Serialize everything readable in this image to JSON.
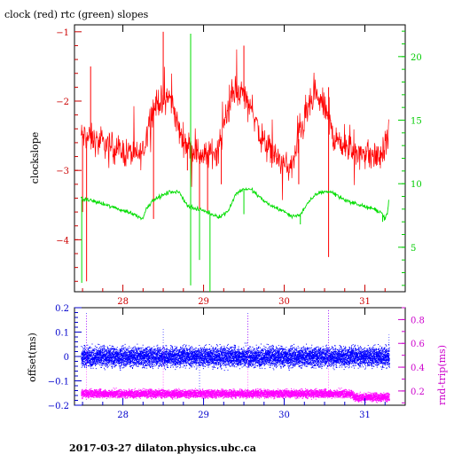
{
  "page": {
    "title": "clock (red) rtc (green) slopes",
    "footer": "2017-03-27  dilaton.physics.ubc.ca"
  },
  "colors": {
    "clock": "#ff0000",
    "rtc": "#00dd00",
    "offset": "#0000ff",
    "rndtrip": "#ff00ff",
    "axis_top": "#cc0000",
    "axis_top_right": "#00cc00",
    "axis_bottom": "#0000cc",
    "axis_bottom_right": "#cc00cc"
  },
  "chart_data": [
    {
      "type": "line",
      "title": "clock (red) rtc (green) slopes",
      "ylabel": "clockslope",
      "xlim": [
        27.4,
        31.5
      ],
      "ylim": [
        -4.75,
        -0.9
      ],
      "y2lim": [
        1.5,
        22.5
      ],
      "xticks": [
        28,
        29,
        30,
        31
      ],
      "yticks": [
        -1,
        -2,
        -3,
        -4
      ],
      "y2ticks": [
        5,
        10,
        15,
        20
      ],
      "grid": false,
      "series": [
        {
          "name": "clock",
          "axis": "left",
          "x": [
            27.48,
            27.55,
            27.62,
            27.7,
            27.78,
            27.86,
            27.94,
            28.02,
            28.1,
            28.18,
            28.26,
            28.3,
            28.35,
            28.4,
            28.45,
            28.5,
            28.55,
            28.6,
            28.65,
            28.7,
            28.78,
            28.86,
            28.94,
            29.02,
            29.1,
            29.18,
            29.25,
            29.3,
            29.35,
            29.4,
            29.45,
            29.5,
            29.55,
            29.6,
            29.65,
            29.7,
            29.78,
            29.86,
            29.94,
            30.02,
            30.1,
            30.15,
            30.2,
            30.25,
            30.3,
            30.35,
            30.4,
            30.45,
            30.5,
            30.55,
            30.6,
            30.65,
            30.7,
            30.78,
            30.86,
            30.94,
            31.02,
            31.1,
            31.18,
            31.24,
            31.27,
            31.3
          ],
          "y": [
            -2.5,
            -2.52,
            -2.55,
            -2.6,
            -2.62,
            -2.66,
            -2.7,
            -2.74,
            -2.75,
            -2.8,
            -2.7,
            -2.45,
            -2.2,
            -2.05,
            -2.0,
            -2.05,
            -1.9,
            -2.0,
            -2.2,
            -2.45,
            -2.6,
            -2.7,
            -2.75,
            -2.8,
            -2.75,
            -2.7,
            -2.4,
            -2.15,
            -1.95,
            -1.85,
            -1.9,
            -1.9,
            -2.0,
            -2.1,
            -2.3,
            -2.5,
            -2.65,
            -2.75,
            -2.85,
            -2.95,
            -2.95,
            -2.7,
            -2.45,
            -2.3,
            -2.1,
            -2.0,
            -1.95,
            -2.0,
            -2.1,
            -2.25,
            -2.5,
            -2.55,
            -2.6,
            -2.7,
            -2.72,
            -2.75,
            -2.75,
            -2.8,
            -2.8,
            -2.72,
            -2.55,
            -2.35
          ],
          "spikes": [
            {
              "x": 27.5,
              "y": -3.6
            },
            {
              "x": 27.55,
              "y": -4.6
            },
            {
              "x": 27.6,
              "y": -1.5
            },
            {
              "x": 28.38,
              "y": -3.7
            },
            {
              "x": 28.5,
              "y": -1.0
            },
            {
              "x": 28.8,
              "y": -3.0
            },
            {
              "x": 28.95,
              "y": -3.9
            },
            {
              "x": 29.05,
              "y": -3.6
            },
            {
              "x": 29.22,
              "y": -3.2
            },
            {
              "x": 29.5,
              "y": -1.2
            },
            {
              "x": 30.18,
              "y": -3.2
            },
            {
              "x": 30.55,
              "y": -4.25
            },
            {
              "x": 30.55,
              "y": -1.8
            }
          ]
        },
        {
          "name": "rtc",
          "axis": "right",
          "x": [
            27.48,
            27.6,
            27.7,
            27.8,
            27.9,
            28.0,
            28.1,
            28.2,
            28.25,
            28.3,
            28.4,
            28.5,
            28.6,
            28.7,
            28.8,
            28.9,
            29.0,
            29.1,
            29.2,
            29.3,
            29.4,
            29.5,
            29.6,
            29.7,
            29.8,
            29.9,
            30.0,
            30.1,
            30.2,
            30.3,
            30.4,
            30.5,
            30.6,
            30.7,
            30.8,
            30.9,
            31.0,
            31.1,
            31.2,
            31.24,
            31.28,
            31.3
          ],
          "y": [
            8.8,
            8.7,
            8.5,
            8.3,
            8.1,
            7.9,
            7.7,
            7.4,
            7.3,
            8.2,
            8.8,
            9.1,
            9.4,
            9.3,
            8.3,
            8.0,
            7.9,
            7.6,
            7.4,
            7.8,
            9.2,
            9.6,
            9.5,
            8.9,
            8.4,
            8.1,
            7.8,
            7.4,
            7.6,
            8.5,
            9.2,
            9.4,
            9.3,
            8.9,
            8.6,
            8.4,
            8.2,
            8.0,
            7.8,
            7.3,
            7.6,
            9.0
          ],
          "spikes": [
            {
              "x": 27.49,
              "y": 2.2
            },
            {
              "x": 27.5,
              "y": 8.8
            },
            {
              "x": 28.84,
              "y": 21.8
            },
            {
              "x": 28.84,
              "y": 2.0
            },
            {
              "x": 29.08,
              "y": 1.5
            },
            {
              "x": 28.95,
              "y": 4.0
            },
            {
              "x": 29.5,
              "y": 7.6
            },
            {
              "x": 30.2,
              "y": 6.8
            },
            {
              "x": 31.22,
              "y": 7.0
            }
          ]
        }
      ]
    },
    {
      "type": "scatter",
      "xlabel": "",
      "ylabel": "offset(ms)",
      "y2label": "rnd-trip(ms)",
      "xlim": [
        27.4,
        31.5
      ],
      "ylim": [
        -0.2,
        0.2
      ],
      "y2lim": [
        0.08,
        0.9
      ],
      "xticks": [
        28,
        29,
        30,
        31
      ],
      "yticks": [
        0.2,
        0.1,
        0,
        -0.1,
        -0.2
      ],
      "y2ticks": [
        0.8,
        0.6,
        0.4,
        0.2
      ],
      "grid": false,
      "series": [
        {
          "name": "offset",
          "axis": "left",
          "x_range": [
            27.48,
            31.3
          ],
          "mean": 0.0,
          "spread": 0.03,
          "spikes": [
            {
              "x": 27.55,
              "y": 0.18
            },
            {
              "x": 28.5,
              "y": 0.12
            },
            {
              "x": 29.55,
              "y": 0.18
            },
            {
              "x": 30.55,
              "y": 0.19
            },
            {
              "x": 31.3,
              "y": 0.09
            },
            {
              "x": 28.95,
              "y": -0.17
            }
          ]
        },
        {
          "name": "rnd-trip",
          "axis": "right",
          "x_range": [
            27.48,
            31.3
          ],
          "mean": 0.18,
          "spread": 0.025,
          "steps": [
            {
              "from": 30.85,
              "to": 31.3,
              "mean": 0.15
            }
          ],
          "spikes": [
            {
              "x": 27.55,
              "y": 0.85
            },
            {
              "x": 28.5,
              "y": 0.58
            },
            {
              "x": 29.55,
              "y": 0.85
            },
            {
              "x": 30.55,
              "y": 0.88
            }
          ]
        }
      ]
    }
  ]
}
